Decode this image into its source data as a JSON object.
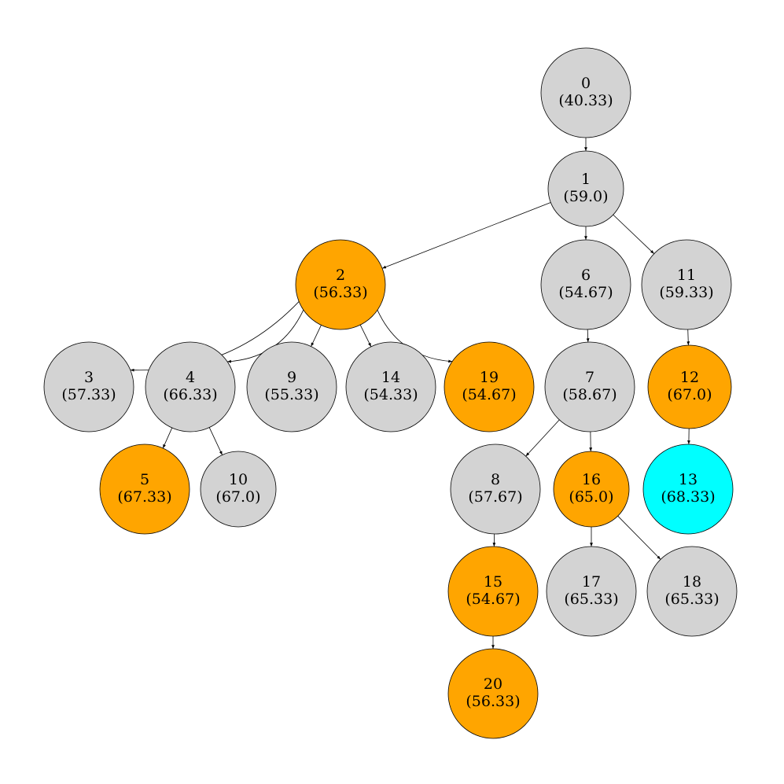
{
  "nodes": [
    {
      "label": "0",
      "value": "(40.33)",
      "color": "#d3d3d3"
    },
    {
      "label": "1",
      "value": "(59.0)",
      "color": "#d3d3d3"
    },
    {
      "label": "2",
      "value": "(56.33)",
      "color": "#ffa500"
    },
    {
      "label": "3",
      "value": "(57.33)",
      "color": "#d3d3d3"
    },
    {
      "label": "4",
      "value": "(66.33)",
      "color": "#d3d3d3"
    },
    {
      "label": "5",
      "value": "(67.33)",
      "color": "#ffa500"
    },
    {
      "label": "6",
      "value": "(54.67)",
      "color": "#d3d3d3"
    },
    {
      "label": "7",
      "value": "(58.67)",
      "color": "#d3d3d3"
    },
    {
      "label": "8",
      "value": "(57.67)",
      "color": "#d3d3d3"
    },
    {
      "label": "9",
      "value": "(55.33)",
      "color": "#d3d3d3"
    },
    {
      "label": "10",
      "value": "(67.0)",
      "color": "#d3d3d3"
    },
    {
      "label": "11",
      "value": "(59.33)",
      "color": "#d3d3d3"
    },
    {
      "label": "12",
      "value": "(67.0)",
      "color": "#ffa500"
    },
    {
      "label": "13",
      "value": "(68.33)",
      "color": "#00ffff"
    },
    {
      "label": "14",
      "value": "(54.33)",
      "color": "#d3d3d3"
    },
    {
      "label": "15",
      "value": "(54.67)",
      "color": "#ffa500"
    },
    {
      "label": "16",
      "value": "(65.0)",
      "color": "#ffa500"
    },
    {
      "label": "17",
      "value": "(65.33)",
      "color": "#d3d3d3"
    },
    {
      "label": "18",
      "value": "(65.33)",
      "color": "#d3d3d3"
    },
    {
      "label": "19",
      "value": "(54.67)",
      "color": "#ffa500"
    },
    {
      "label": "20",
      "value": "(56.33)",
      "color": "#ffa500"
    }
  ]
}
